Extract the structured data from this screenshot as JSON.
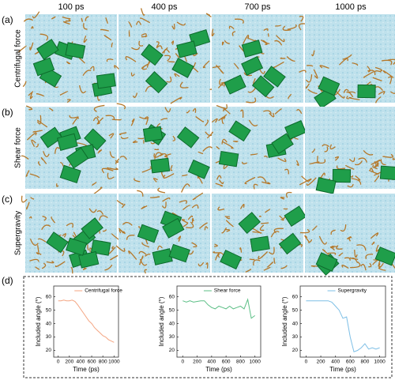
{
  "columns": [
    "100 ps",
    "400 ps",
    "700 ps",
    "1000 ps"
  ],
  "rows": [
    {
      "letter": "(a)",
      "label": "Centrifugal force"
    },
    {
      "letter": "(b)",
      "label": "Shear force"
    },
    {
      "letter": "(c)",
      "label": "Supergravity"
    }
  ],
  "panel_d": "(d)",
  "chart_data": [
    {
      "type": "line",
      "xlabel": "Time (ps)",
      "ylabel": "Included angle (°)",
      "x": [
        0,
        50,
        100,
        150,
        200,
        250,
        300,
        350,
        400,
        450,
        500,
        550,
        600,
        650,
        700,
        750,
        800,
        850,
        900,
        950,
        1000
      ],
      "series": [
        {
          "name": "Centrifugal force",
          "color": "#f4a582",
          "values": [
            57,
            57,
            57.5,
            57,
            57,
            57.5,
            56.5,
            54,
            51,
            48,
            45,
            42,
            40,
            37,
            35,
            33,
            31,
            30,
            28,
            27,
            26
          ]
        }
      ],
      "xlim": [
        -80,
        1080
      ],
      "ylim": [
        15,
        68
      ],
      "xticks": [
        0,
        200,
        400,
        600,
        800,
        1000
      ],
      "yticks": [
        20,
        30,
        40,
        50,
        60
      ]
    },
    {
      "type": "line",
      "xlabel": "Time (ps)",
      "ylabel": "Included angle (°)",
      "x": [
        0,
        50,
        100,
        150,
        200,
        250,
        300,
        350,
        400,
        450,
        500,
        550,
        600,
        650,
        700,
        750,
        800,
        850,
        900,
        950,
        1000
      ],
      "series": [
        {
          "name": "Shear force",
          "color": "#5cbf86",
          "values": [
            57,
            56,
            57,
            56,
            56.5,
            57,
            57,
            54,
            52,
            51,
            53,
            52,
            51,
            53,
            51,
            52,
            53,
            51,
            58,
            44,
            46
          ]
        }
      ],
      "xlim": [
        -80,
        1080
      ],
      "ylim": [
        15,
        68
      ],
      "xticks": [
        0,
        200,
        400,
        600,
        800,
        1000
      ],
      "yticks": [
        20,
        30,
        40,
        50,
        60
      ]
    },
    {
      "type": "line",
      "xlabel": "Time (ps)",
      "ylabel": "Included angle (°)",
      "x": [
        0,
        50,
        100,
        150,
        200,
        250,
        300,
        350,
        400,
        450,
        500,
        550,
        600,
        650,
        700,
        750,
        800,
        850,
        900,
        950,
        1000
      ],
      "series": [
        {
          "name": "Supergravity",
          "color": "#7dbfe6",
          "values": [
            57,
            57,
            57,
            57,
            57,
            57,
            57,
            56,
            53,
            50,
            44,
            45,
            30,
            19,
            20,
            22,
            25,
            21,
            22,
            21,
            22
          ]
        }
      ],
      "xlim": [
        -80,
        1080
      ],
      "ylim": [
        15,
        68
      ],
      "xticks": [
        0,
        200,
        400,
        600,
        800,
        1000
      ],
      "yticks": [
        20,
        30,
        40,
        50,
        60
      ]
    }
  ]
}
